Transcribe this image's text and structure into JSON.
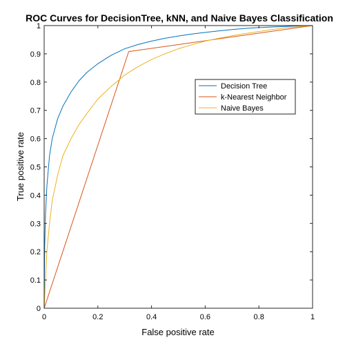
{
  "chart_data": {
    "type": "line",
    "title": "ROC Curves for DecisionTree, kNN, and Naive Bayes Classification",
    "xlabel": "False positive rate",
    "ylabel": "True positive rate",
    "xlim": [
      0,
      1
    ],
    "ylim": [
      0,
      1
    ],
    "xticks": [
      "0",
      "0.2",
      "0.4",
      "0.6",
      "0.8",
      "1"
    ],
    "yticks": [
      "0",
      "0.1",
      "0.2",
      "0.3",
      "0.4",
      "0.5",
      "0.6",
      "0.7",
      "0.8",
      "0.9",
      "1"
    ],
    "grid": false,
    "legend_position": "upper-right",
    "series": [
      {
        "name": "Decision Tree",
        "color": "#0072BD",
        "x": [
          0,
          0.002,
          0.005,
          0.01,
          0.02,
          0.03,
          0.05,
          0.07,
          0.1,
          0.13,
          0.16,
          0.2,
          0.25,
          0.3,
          0.35,
          0.4,
          0.45,
          0.5,
          0.55,
          0.6,
          0.65,
          0.7,
          0.75,
          0.8,
          0.85,
          0.9,
          0.95,
          1.0
        ],
        "y": [
          0,
          0.22,
          0.33,
          0.43,
          0.54,
          0.6,
          0.67,
          0.715,
          0.765,
          0.805,
          0.835,
          0.865,
          0.895,
          0.918,
          0.933,
          0.945,
          0.955,
          0.963,
          0.97,
          0.976,
          0.981,
          0.986,
          0.99,
          0.993,
          0.995,
          0.997,
          0.999,
          1.0
        ]
      },
      {
        "name": "k-Nearest Neighbor",
        "color": "#D95319",
        "x": [
          0,
          0.315,
          1.0
        ],
        "y": [
          0,
          0.908,
          1.0
        ]
      },
      {
        "name": "Naive Bayes",
        "color": "#EDB120",
        "x": [
          0,
          0.005,
          0.01,
          0.02,
          0.03,
          0.05,
          0.07,
          0.1,
          0.13,
          0.16,
          0.2,
          0.25,
          0.3,
          0.35,
          0.4,
          0.45,
          0.5,
          0.55,
          0.6,
          0.65,
          0.7,
          0.75,
          0.8,
          0.85,
          0.9,
          0.95,
          1.0
        ],
        "y": [
          0,
          0.1,
          0.2,
          0.3,
          0.38,
          0.47,
          0.54,
          0.6,
          0.65,
          0.69,
          0.74,
          0.785,
          0.825,
          0.855,
          0.88,
          0.9,
          0.918,
          0.932,
          0.945,
          0.955,
          0.964,
          0.972,
          0.979,
          0.986,
          0.992,
          0.996,
          1.0
        ]
      }
    ]
  }
}
